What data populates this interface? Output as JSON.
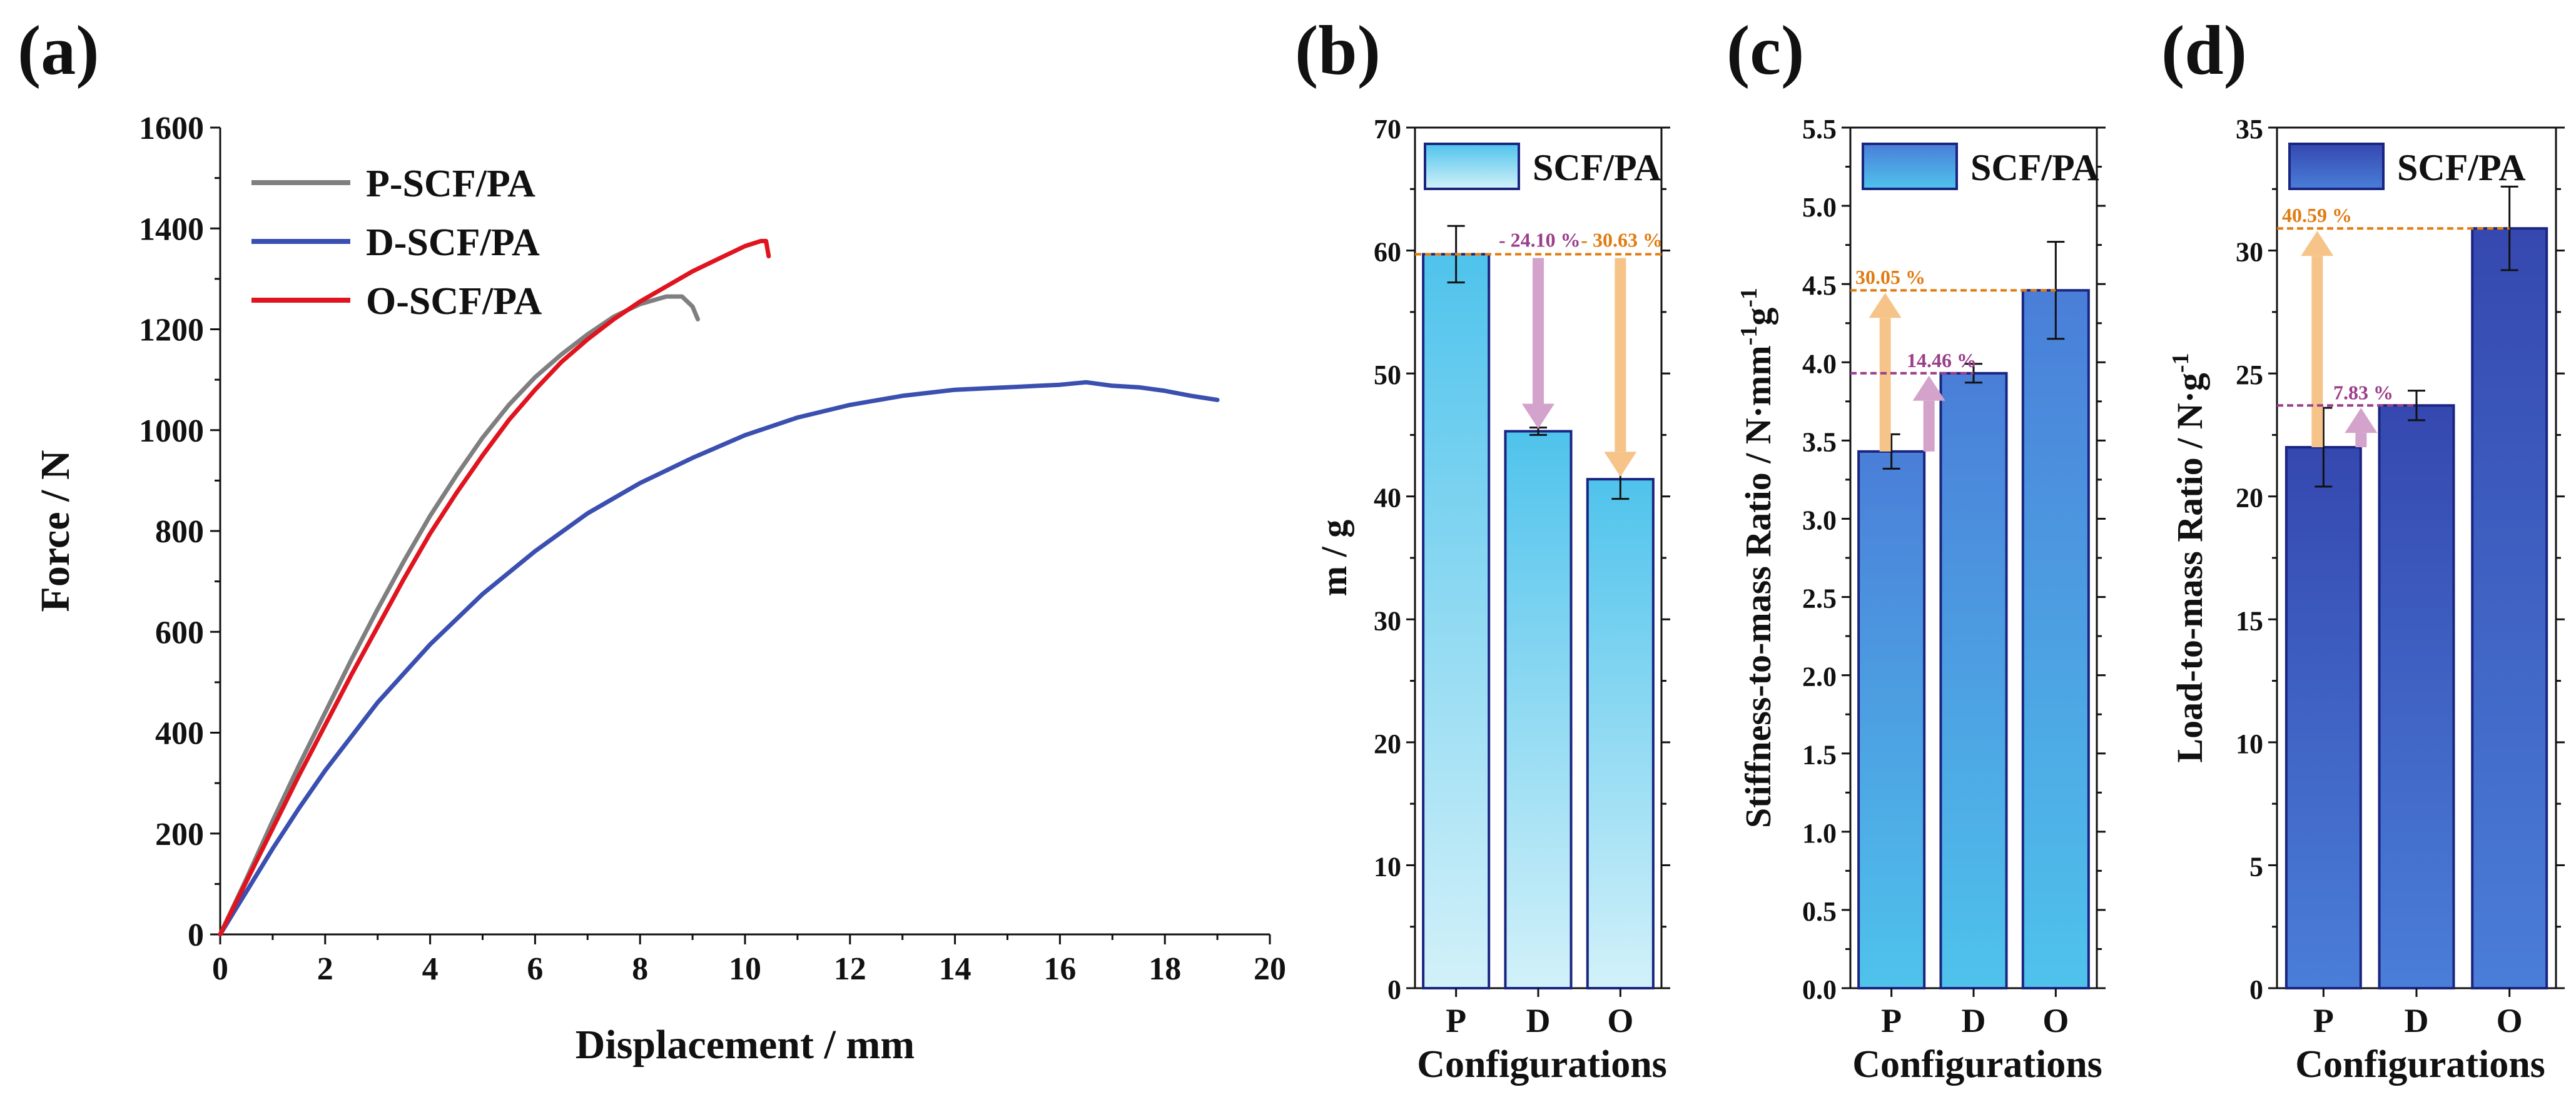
{
  "figure": {
    "panel_labels": [
      "(a)",
      "(b)",
      "(c)",
      "(d)"
    ]
  },
  "chart_data": [
    {
      "id": "a",
      "type": "line",
      "xlabel": "Displacement / mm",
      "ylabel": "Force / N",
      "xlim": [
        0,
        20
      ],
      "ylim": [
        0,
        1600
      ],
      "xticks": [
        0,
        2,
        4,
        6,
        8,
        10,
        12,
        14,
        16,
        18,
        20
      ],
      "yticks": [
        0,
        200,
        400,
        600,
        800,
        1000,
        1200,
        1400,
        1600
      ],
      "grid": false,
      "legend_position": "top-left",
      "series": [
        {
          "name": "P-SCF/PA",
          "color": "#7f7f7f",
          "x": [
            0,
            0.5,
            1,
            1.5,
            2,
            2.5,
            3,
            3.5,
            4,
            4.5,
            5,
            5.5,
            6,
            6.5,
            7,
            7.5,
            8,
            8.5,
            8.8,
            9.0,
            9.1
          ],
          "y": [
            0,
            110,
            225,
            335,
            440,
            545,
            645,
            740,
            830,
            910,
            985,
            1050,
            1105,
            1150,
            1190,
            1225,
            1250,
            1265,
            1265,
            1245,
            1220
          ]
        },
        {
          "name": "D-SCF/PA",
          "color": "#3a4fb0",
          "x": [
            0,
            0.5,
            1,
            1.5,
            2,
            3,
            4,
            5,
            6,
            7,
            8,
            9,
            10,
            11,
            12,
            13,
            14,
            15,
            16,
            16.5,
            17,
            17.5,
            18,
            18.5,
            19
          ],
          "y": [
            0,
            85,
            170,
            250,
            325,
            460,
            575,
            675,
            760,
            835,
            895,
            945,
            990,
            1025,
            1050,
            1068,
            1080,
            1085,
            1090,
            1095,
            1088,
            1085,
            1078,
            1068,
            1060
          ]
        },
        {
          "name": "O-SCF/PA",
          "color": "#e0141e",
          "x": [
            0,
            0.5,
            1,
            1.5,
            2,
            2.5,
            3,
            3.5,
            4,
            4.5,
            5,
            5.5,
            6,
            6.5,
            7,
            7.5,
            8,
            8.5,
            9,
            9.5,
            10,
            10.3,
            10.4,
            10.45
          ],
          "y": [
            0,
            105,
            210,
            315,
            415,
            515,
            610,
            705,
            795,
            875,
            950,
            1020,
            1080,
            1135,
            1180,
            1220,
            1255,
            1285,
            1315,
            1340,
            1365,
            1375,
            1375,
            1345
          ]
        }
      ]
    },
    {
      "id": "b",
      "type": "bar",
      "categories": [
        "P",
        "D",
        "O"
      ],
      "values": [
        59.7,
        45.3,
        41.4
      ],
      "errors": [
        2.3,
        0.3,
        1.6
      ],
      "xlabel": "Configurations",
      "ylabel": "m / g",
      "ylim": [
        0,
        70
      ],
      "yticks": [
        0,
        10,
        20,
        30,
        40,
        50,
        60,
        70
      ],
      "legend": "SCF/PA",
      "legend_position": "top-left",
      "gradient": [
        "#d2f1f9",
        "#4fc3ec"
      ],
      "annotations": [
        {
          "text": "- 24.10 %",
          "color": "#9b3e8a",
          "from": 59.7,
          "to": 45.3,
          "arrow": "#d3a3cc",
          "at": 1
        },
        {
          "text": "- 30.63 %",
          "color": "#e07c12",
          "from": 59.7,
          "to": 41.4,
          "arrow": "#f6c489",
          "at": 2
        }
      ]
    },
    {
      "id": "c",
      "type": "bar",
      "categories": [
        "P",
        "D",
        "O"
      ],
      "values": [
        3.43,
        3.93,
        4.46
      ],
      "errors": [
        0.11,
        0.06,
        0.31
      ],
      "xlabel": "Configurations",
      "ylabel": "Stiffness-to-mass Ratio / N·mm",
      "ylabel_sup1": "-1",
      "ylabel_mid": "g",
      "ylabel_sup2": "-1",
      "ylim": [
        0,
        5.5
      ],
      "yticks": [
        0.0,
        0.5,
        1.0,
        1.5,
        2.0,
        2.5,
        3.0,
        3.5,
        4.0,
        4.5,
        5.0,
        5.5
      ],
      "legend": "SCF/PA",
      "legend_position": "top-left",
      "gradient": [
        "#4fc3ec",
        "#4a7ed8"
      ],
      "annotations": [
        {
          "text": "30.05 %",
          "color": "#e07c12",
          "from": 3.43,
          "to": 4.46,
          "arrow": "#f6c489",
          "at": 0
        },
        {
          "text": "14.46 %",
          "color": "#9b3e8a",
          "from": 3.43,
          "to": 3.93,
          "arrow": "#d3a3cc",
          "at": 0
        }
      ]
    },
    {
      "id": "d",
      "type": "bar",
      "categories": [
        "P",
        "D",
        "O"
      ],
      "values": [
        22.0,
        23.7,
        30.9
      ],
      "errors": [
        1.6,
        0.6,
        1.7
      ],
      "xlabel": "Configurations",
      "ylabel": "Load-to-mass Ratio / N·g",
      "ylabel_sup1": "-1",
      "ylim": [
        0,
        35
      ],
      "yticks": [
        0,
        5,
        10,
        15,
        20,
        25,
        30,
        35
      ],
      "legend": "SCF/PA",
      "legend_position": "top-left",
      "gradient": [
        "#4a7ed8",
        "#3548b0"
      ],
      "annotations": [
        {
          "text": "40.59 %",
          "color": "#e07c12",
          "from": 22.0,
          "to": 30.9,
          "arrow": "#f6c489",
          "at": 0
        },
        {
          "text": "7.83 %",
          "color": "#9b3e8a",
          "from": 22.0,
          "to": 23.7,
          "arrow": "#d3a3cc",
          "at": 0
        }
      ]
    }
  ]
}
